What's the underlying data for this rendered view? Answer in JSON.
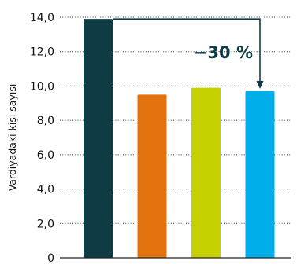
{
  "chart_data": {
    "type": "bar",
    "ylabel": "Vardiyadaki kişi sayısı",
    "ylim": [
      0,
      14
    ],
    "ytick_values": [
      0,
      2,
      4,
      6,
      8,
      10,
      12,
      14
    ],
    "ytick_labels": [
      "0",
      "2,0",
      "4,0",
      "6,0",
      "8,0",
      "10,0",
      "12,0",
      "14,0"
    ],
    "grid": true,
    "categories": [
      "",
      "",
      "",
      ""
    ],
    "values": [
      13.9,
      9.5,
      9.9,
      9.7
    ],
    "colors": [
      "#0f3c44",
      "#e2730f",
      "#c5d100",
      "#00aeea"
    ],
    "annotation": {
      "text": "−30 %",
      "from_bar": 0,
      "to_bar": 3,
      "color": "#0f3c44"
    }
  }
}
